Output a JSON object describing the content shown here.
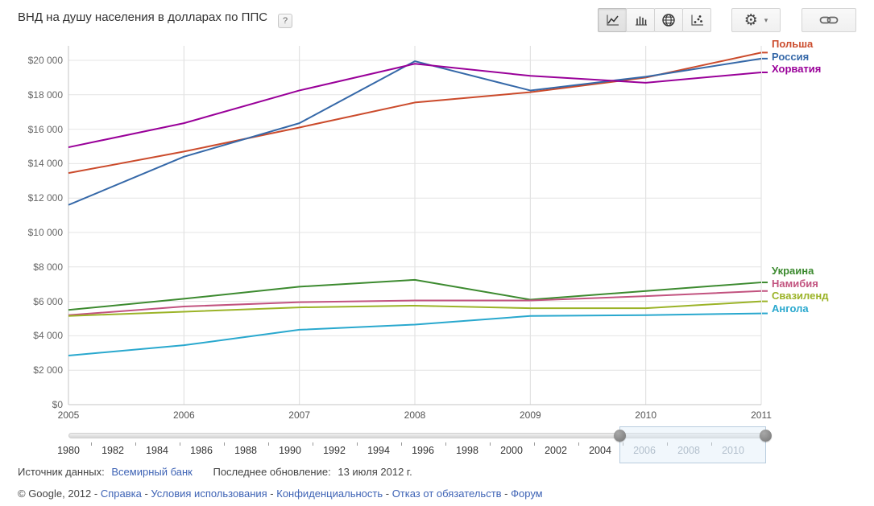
{
  "header": {
    "title": "ВНД на душу населения в долларах по ППС",
    "help_badge": "?"
  },
  "toolbar": {
    "chart_buttons": [
      {
        "icon": "line-chart-icon",
        "selected": true
      },
      {
        "icon": "bar-chart-icon",
        "selected": false
      },
      {
        "icon": "map-chart-icon",
        "selected": false
      },
      {
        "icon": "scatter-chart-icon",
        "selected": false
      }
    ],
    "settings_icon": "⚙",
    "caret": "▾",
    "link_icon": "chain-link-icon"
  },
  "chart_data": {
    "type": "line",
    "title": "ВНД на душу населения в долларах по ППС",
    "x": [
      2005,
      2006,
      2007,
      2008,
      2009,
      2010,
      2011
    ],
    "xlabel": "",
    "ylabel": "",
    "ylim": [
      0,
      20000
    ],
    "grid": true,
    "legend_position": "right",
    "y_ticks": [
      {
        "value": 0,
        "label": "$0"
      },
      {
        "value": 2000,
        "label": "$2 000"
      },
      {
        "value": 4000,
        "label": "$4 000"
      },
      {
        "value": 6000,
        "label": "$6 000"
      },
      {
        "value": 8000,
        "label": "$8 000"
      },
      {
        "value": 10000,
        "label": "$10 000"
      },
      {
        "value": 12000,
        "label": "$12 000"
      },
      {
        "value": 14000,
        "label": "$14 000"
      },
      {
        "value": 16000,
        "label": "$16 000"
      },
      {
        "value": 18000,
        "label": "$18 000"
      },
      {
        "value": 20000,
        "label": "$20 000"
      }
    ],
    "series": [
      {
        "name": "Польша",
        "color": "#CB4B2C",
        "values": [
          13450,
          14700,
          16100,
          17550,
          18150,
          19000,
          20450
        ]
      },
      {
        "name": "Россия",
        "color": "#3568A8",
        "values": [
          11600,
          14400,
          16350,
          19950,
          18250,
          19050,
          20100
        ]
      },
      {
        "name": "Хорватия",
        "color": "#990099",
        "values": [
          14950,
          16350,
          18250,
          19800,
          19100,
          18700,
          19300
        ]
      },
      {
        "name": "Украина",
        "color": "#3C8A2F",
        "values": [
          5500,
          6150,
          6850,
          7250,
          6100,
          6600,
          7100
        ]
      },
      {
        "name": "Намибия",
        "color": "#C2537F",
        "values": [
          5200,
          5700,
          5950,
          6050,
          6050,
          6300,
          6600
        ]
      },
      {
        "name": "Свазиленд",
        "color": "#9BB327",
        "values": [
          5150,
          5400,
          5650,
          5750,
          5600,
          5600,
          6000
        ]
      },
      {
        "name": "Ангола",
        "color": "#29A8CE",
        "values": [
          2850,
          3450,
          4350,
          4650,
          5150,
          5200,
          5300
        ]
      }
    ]
  },
  "timeline": {
    "years": [
      "1980",
      "1982",
      "1984",
      "1986",
      "1988",
      "1990",
      "1992",
      "1994",
      "1996",
      "1998",
      "2000",
      "2002",
      "2004",
      "2006",
      "2008",
      "2010"
    ],
    "selection_start_index": 13,
    "selected_range": [
      "2005",
      "2011"
    ]
  },
  "footer": {
    "source_label": "Источник данных:",
    "source_link": "Всемирный банк",
    "updated_label": "Последнее обновление:",
    "updated_value": "13 июля 2012 г.",
    "copyright": "© Google, 2012",
    "separator": " - ",
    "links": [
      "Справка",
      "Условия использования",
      "Конфиденциальность",
      "Отказ от обязательств",
      "Форум"
    ]
  },
  "colors": {
    "link": "#3E63B5",
    "grid_horizontal": "#E4E4E4",
    "grid_vertical": "#DCDCDC",
    "axis": "#C6C6C6",
    "selection_fill": "#E1EEF8"
  }
}
